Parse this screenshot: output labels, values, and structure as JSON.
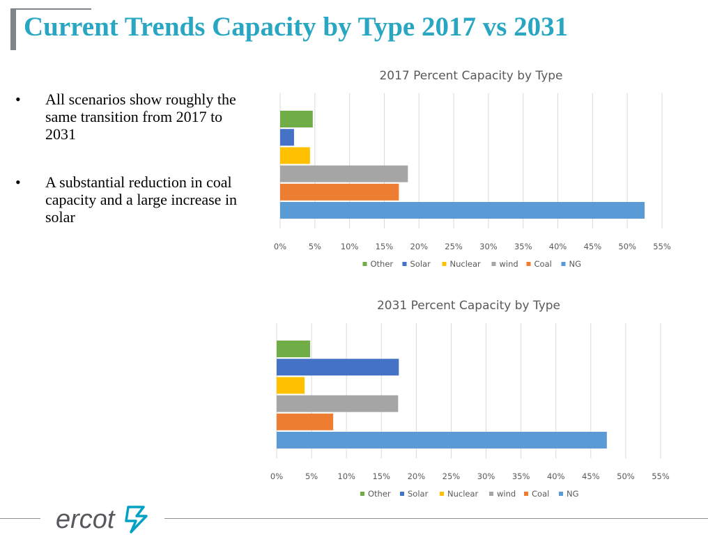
{
  "slide": {
    "title": "Current Trends Capacity by Type 2017 vs 2031",
    "bullets": [
      "All scenarios show roughly the same transition from 2017 to 2031",
      "A substantial reduction in coal capacity and a large increase in solar"
    ],
    "bullet_symbol": "•",
    "logo_text": "ercot",
    "colors": {
      "title": "#28a6c2",
      "logo": "#56585c",
      "logo_mark": "#00a1c4"
    }
  },
  "chart_data": [
    {
      "type": "bar",
      "orientation": "horizontal",
      "title": "2017 Percent Capacity by Type",
      "xlim": [
        0,
        55
      ],
      "xticks": [
        "0%",
        "5%",
        "10%",
        "15%",
        "20%",
        "25%",
        "30%",
        "35%",
        "40%",
        "45%",
        "50%",
        "55%"
      ],
      "grid": true,
      "legend_position": "bottom",
      "series": [
        {
          "name": "Other",
          "value": 4.7,
          "color": "#70ad47"
        },
        {
          "name": "Solar",
          "value": 2.0,
          "color": "#4472c4"
        },
        {
          "name": "Nuclear",
          "value": 4.3,
          "color": "#ffc000"
        },
        {
          "name": "wind",
          "value": 18.4,
          "color": "#a5a5a5"
        },
        {
          "name": "Coal",
          "value": 17.1,
          "color": "#ed7d31"
        },
        {
          "name": "NG",
          "value": 52.5,
          "color": "#5b9bd5"
        }
      ]
    },
    {
      "type": "bar",
      "orientation": "horizontal",
      "title": "2031 Percent Capacity by Type",
      "xlim": [
        0,
        55
      ],
      "xticks": [
        "0%",
        "5%",
        "10%",
        "15%",
        "20%",
        "25%",
        "30%",
        "35%",
        "40%",
        "45%",
        "50%",
        "55%"
      ],
      "grid": true,
      "legend_position": "bottom",
      "series": [
        {
          "name": "Other",
          "value": 4.8,
          "color": "#70ad47"
        },
        {
          "name": "Solar",
          "value": 17.5,
          "color": "#4472c4"
        },
        {
          "name": "Nuclear",
          "value": 4.0,
          "color": "#ffc000"
        },
        {
          "name": "wind",
          "value": 17.4,
          "color": "#a5a5a5"
        },
        {
          "name": "Coal",
          "value": 8.1,
          "color": "#ed7d31"
        },
        {
          "name": "NG",
          "value": 47.3,
          "color": "#5b9bd5"
        }
      ]
    }
  ]
}
